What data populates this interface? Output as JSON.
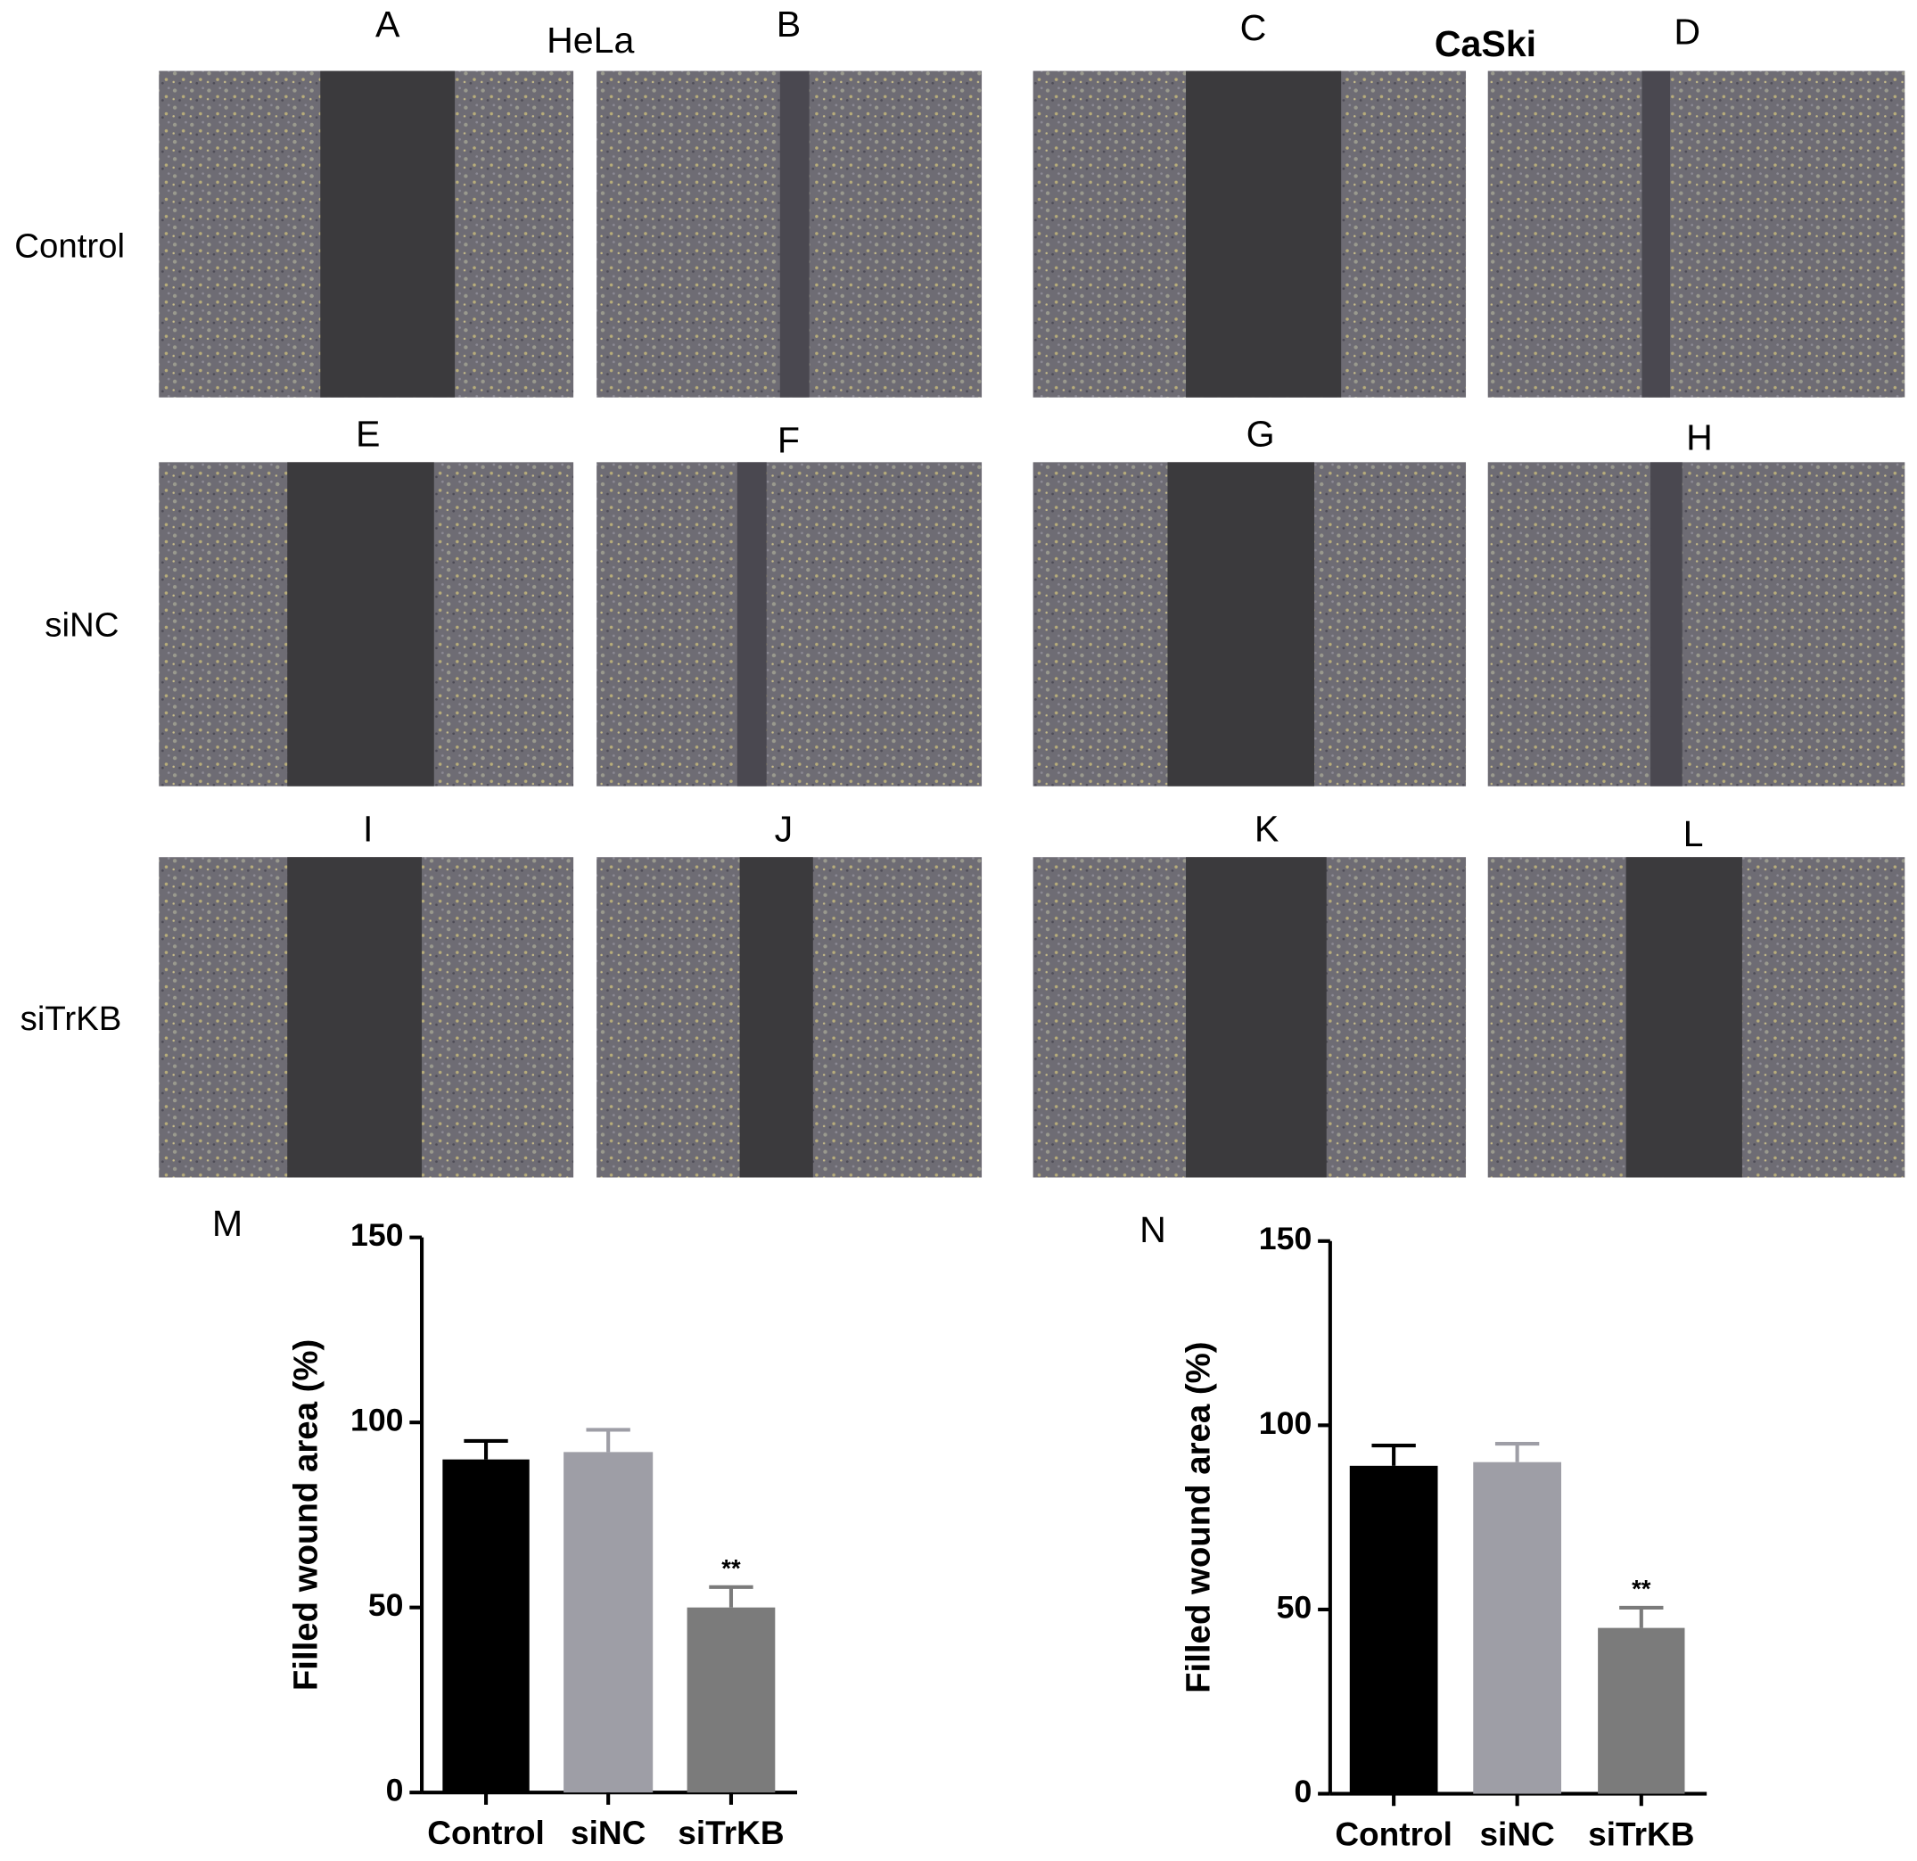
{
  "figure": {
    "cell_lines": [
      "HeLa",
      "CaSki"
    ],
    "row_labels": [
      "Control",
      "siNC",
      "siTrKB"
    ],
    "panel_labels": [
      "A",
      "B",
      "C",
      "D",
      "E",
      "F",
      "G",
      "H",
      "I",
      "J",
      "K",
      "L"
    ]
  },
  "chart_data": [
    {
      "type": "bar",
      "panel_label": "M",
      "y_label": "Filled wound area (%)",
      "categories": [
        "Control",
        "siNC",
        "siTrKB"
      ],
      "values": [
        90,
        92,
        50
      ],
      "errors": [
        5,
        6,
        5.5
      ],
      "annotations": [
        null,
        null,
        "**"
      ],
      "colors": [
        "#000000",
        "#9e9ea6",
        "#7b7b7b"
      ],
      "ylim": [
        0,
        150
      ],
      "yticks": [
        0,
        50,
        100,
        150
      ]
    },
    {
      "type": "bar",
      "panel_label": "N",
      "y_label": "Filled wound area (%)",
      "categories": [
        "Control",
        "siNC",
        "siTrKB"
      ],
      "values": [
        89,
        90,
        45
      ],
      "errors": [
        5.5,
        5,
        5.5
      ],
      "annotations": [
        null,
        null,
        "**"
      ],
      "colors": [
        "#000000",
        "#9e9ea6",
        "#7b7b7b"
      ],
      "ylim": [
        0,
        150
      ],
      "yticks": [
        0,
        50,
        100,
        150
      ]
    }
  ]
}
